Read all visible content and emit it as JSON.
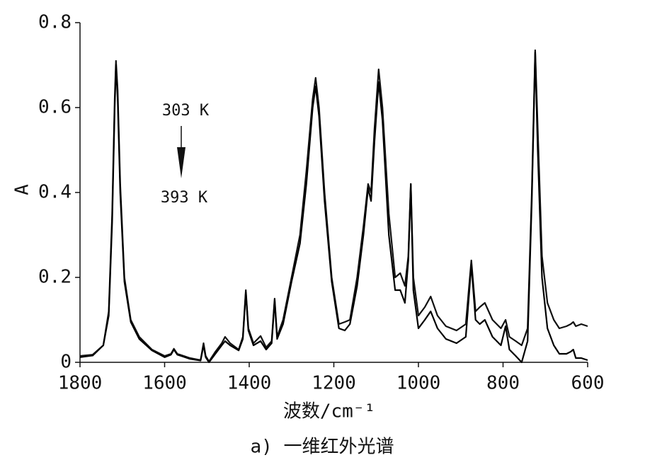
{
  "chart_data": {
    "type": "line",
    "xlabel": "波数/cm⁻¹",
    "ylabel": "A",
    "caption": "a) 一维红外光谱",
    "annotations": [
      "303 K",
      "393 K"
    ],
    "xlim": [
      1800,
      600
    ],
    "xticks": [
      1800,
      1600,
      1400,
      1200,
      1000,
      800,
      600
    ],
    "ylim": [
      0,
      0.8
    ],
    "yticks": [
      0,
      0.2,
      0.4,
      0.6,
      0.8
    ],
    "x": [
      1800,
      1770,
      1745,
      1732,
      1724,
      1718,
      1715,
      1711,
      1705,
      1695,
      1680,
      1660,
      1630,
      1600,
      1585,
      1578,
      1570,
      1540,
      1515,
      1508,
      1503,
      1495,
      1480,
      1465,
      1457,
      1445,
      1425,
      1415,
      1408,
      1402,
      1390,
      1373,
      1360,
      1347,
      1340,
      1334,
      1320,
      1300,
      1280,
      1265,
      1250,
      1243,
      1235,
      1222,
      1205,
      1188,
      1174,
      1162,
      1145,
      1130,
      1119,
      1112,
      1104,
      1094,
      1085,
      1070,
      1055,
      1043,
      1032,
      1024,
      1018,
      1012,
      1000,
      985,
      971,
      955,
      935,
      910,
      888,
      875,
      865,
      855,
      843,
      825,
      805,
      794,
      785,
      770,
      756,
      742,
      732,
      724,
      718,
      708,
      695,
      680,
      667,
      650,
      640,
      634,
      628,
      615,
      600
    ],
    "series": [
      {
        "color": "#111111",
        "values": [
          0.015,
          0.018,
          0.04,
          0.12,
          0.35,
          0.62,
          0.71,
          0.64,
          0.42,
          0.2,
          0.1,
          0.06,
          0.03,
          0.015,
          0.02,
          0.032,
          0.02,
          0.01,
          0.005,
          0.045,
          0.015,
          0.002,
          0.025,
          0.045,
          0.06,
          0.045,
          0.03,
          0.06,
          0.17,
          0.08,
          0.045,
          0.062,
          0.035,
          0.05,
          0.15,
          0.06,
          0.1,
          0.2,
          0.3,
          0.45,
          0.62,
          0.67,
          0.6,
          0.4,
          0.2,
          0.09,
          0.095,
          0.1,
          0.2,
          0.32,
          0.42,
          0.4,
          0.55,
          0.69,
          0.6,
          0.35,
          0.2,
          0.21,
          0.18,
          0.25,
          0.42,
          0.2,
          0.11,
          0.13,
          0.155,
          0.11,
          0.085,
          0.075,
          0.09,
          0.24,
          0.12,
          0.13,
          0.14,
          0.1,
          0.08,
          0.1,
          0.06,
          0.05,
          0.04,
          0.08,
          0.4,
          0.735,
          0.55,
          0.25,
          0.14,
          0.1,
          0.08,
          0.085,
          0.09,
          0.095,
          0.085,
          0.09,
          0.085
        ]
      },
      {
        "color": "#000000",
        "values": [
          0.012,
          0.016,
          0.04,
          0.11,
          0.33,
          0.6,
          0.7,
          0.62,
          0.4,
          0.19,
          0.095,
          0.055,
          0.028,
          0.012,
          0.018,
          0.03,
          0.018,
          0.008,
          0.004,
          0.04,
          0.012,
          0,
          0.02,
          0.04,
          0.05,
          0.04,
          0.028,
          0.055,
          0.165,
          0.075,
          0.04,
          0.05,
          0.03,
          0.045,
          0.145,
          0.055,
          0.09,
          0.19,
          0.28,
          0.42,
          0.6,
          0.65,
          0.58,
          0.38,
          0.19,
          0.08,
          0.075,
          0.09,
          0.18,
          0.3,
          0.41,
          0.38,
          0.52,
          0.66,
          0.57,
          0.3,
          0.17,
          0.17,
          0.14,
          0.24,
          0.42,
          0.17,
          0.08,
          0.1,
          0.12,
          0.08,
          0.055,
          0.045,
          0.06,
          0.23,
          0.1,
          0.09,
          0.1,
          0.06,
          0.04,
          0.085,
          0.03,
          0.015,
          0,
          0.05,
          0.38,
          0.73,
          0.5,
          0.2,
          0.08,
          0.04,
          0.02,
          0.02,
          0.025,
          0.03,
          0.01,
          0.01,
          0.005
        ]
      }
    ]
  }
}
